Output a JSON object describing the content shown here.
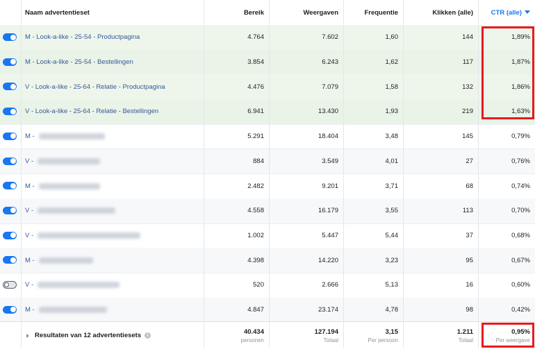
{
  "columns": {
    "name": "Naam advertentieset",
    "reach": "Bereik",
    "impressions": "Weergaven",
    "frequency": "Frequentie",
    "clicks": "Klikken (alle)",
    "ctr": "CTR (alle)",
    "ctr_sort_icon": "sort-desc-icon"
  },
  "rows": [
    {
      "on": true,
      "name": "M - Look-a-like - 25-54 - Productpagina",
      "reach": "4.764",
      "impressions": "7.602",
      "frequency": "1,60",
      "clicks": "144",
      "ctr": "1,89%"
    },
    {
      "on": true,
      "name": "M - Look-a-like - 25-54 - Bestellingen",
      "reach": "3.854",
      "impressions": "6.243",
      "frequency": "1,62",
      "clicks": "117",
      "ctr": "1,87%"
    },
    {
      "on": true,
      "name": "V - Look-a-like - 25-64 - Relatie - Productpagina",
      "reach": "4.476",
      "impressions": "7.079",
      "frequency": "1,58",
      "clicks": "132",
      "ctr": "1,86%"
    },
    {
      "on": true,
      "name": "V - Look-a-like - 25-64 - Relatie - Bestellingen",
      "reach": "6.941",
      "impressions": "13.430",
      "frequency": "1,93",
      "clicks": "219",
      "ctr": "1,63%"
    },
    {
      "on": true,
      "name": "M -",
      "reach": "5.291",
      "impressions": "18.404",
      "frequency": "3,48",
      "clicks": "145",
      "ctr": "0,79%"
    },
    {
      "on": true,
      "name": "V -",
      "reach": "884",
      "impressions": "3.549",
      "frequency": "4,01",
      "clicks": "27",
      "ctr": "0,76%"
    },
    {
      "on": true,
      "name": "M -",
      "reach": "2.482",
      "impressions": "9.201",
      "frequency": "3,71",
      "clicks": "68",
      "ctr": "0,74%"
    },
    {
      "on": true,
      "name": "V -",
      "reach": "4.558",
      "impressions": "16.179",
      "frequency": "3,55",
      "clicks": "113",
      "ctr": "0,70%"
    },
    {
      "on": true,
      "name": "V -",
      "reach": "1.002",
      "impressions": "5.447",
      "frequency": "5,44",
      "clicks": "37",
      "ctr": "0,68%"
    },
    {
      "on": true,
      "name": "M -",
      "reach": "4.398",
      "impressions": "14.220",
      "frequency": "3,23",
      "clicks": "95",
      "ctr": "0,67%"
    },
    {
      "on": false,
      "name": "V -",
      "reach": "520",
      "impressions": "2.666",
      "frequency": "5,13",
      "clicks": "16",
      "ctr": "0,60%"
    },
    {
      "on": true,
      "name": "M -",
      "reach": "4.847",
      "impressions": "23.174",
      "frequency": "4,78",
      "clicks": "98",
      "ctr": "0,42%"
    }
  ],
  "footer": {
    "label": "Resultaten van 12 advertentiesets",
    "info_icon": "info-icon",
    "reach": "40.434",
    "reach_sub": "personen",
    "impressions": "127.194",
    "impressions_sub": "Totaal",
    "frequency": "3,15",
    "frequency_sub": "Per persoon",
    "clicks": "1.211",
    "clicks_sub": "Totaal",
    "ctr": "0,95%",
    "ctr_sub": "Per weergave"
  },
  "colors": {
    "accent": "#1877f2",
    "link": "#385898",
    "highlight_row": "#eef6ec",
    "annotation_box": "#e8191f"
  }
}
